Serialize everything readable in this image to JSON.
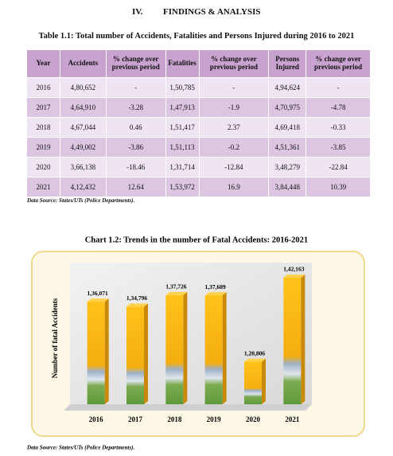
{
  "header": {
    "section_number": "IV.",
    "section_title": "FINDINGS & ANALYSIS"
  },
  "table": {
    "title": "Table 1.1:  Total number of Accidents, Fatalities and Persons Injured during 2016 to 2021",
    "columns": [
      "Year",
      "Accidents",
      "% change over previous period",
      "Fatalities",
      "% change over previous period",
      "Persons Injured",
      "% change over previous period"
    ],
    "rows": [
      [
        "2016",
        "4,80,652",
        "-",
        "1,50,785",
        "-",
        "4,94,624",
        "-"
      ],
      [
        "2017",
        "4,64,910",
        "-3.28",
        "1,47,913",
        "-1.9",
        "4,70,975",
        "-4.78"
      ],
      [
        "2018",
        "4,67,044",
        "0.46",
        "1,51,417",
        "2.37",
        "4,69,418",
        "-0.33"
      ],
      [
        "2019",
        "4,49,002",
        "-3.86",
        "1,51,113",
        "-0.2",
        "4,51,361",
        "-3.85"
      ],
      [
        "2020",
        "3,66,138",
        "-18.46",
        "1,31,714",
        "-12.84",
        "3,48,279",
        "-22.84"
      ],
      [
        "2021",
        "4,12,432",
        "12.64",
        "1,53,972",
        "16.9",
        "3,84,448",
        "10.39"
      ]
    ],
    "source": "Data Source: States/UTs (Police Departments)."
  },
  "chart_data": {
    "type": "bar",
    "title": "Chart 1.2:  Trends in the number of Fatal Accidents: 2016-2021",
    "y_label": "Number of fatal Accidents",
    "categories": [
      "2016",
      "2017",
      "2018",
      "2019",
      "2020",
      "2021"
    ],
    "values": [
      136071,
      134796,
      137726,
      137689,
      120806,
      142163
    ],
    "value_labels": [
      "1,36,071",
      "1,34,796",
      "1,37,726",
      "1,37,689",
      "1,20,806",
      "1,42,163"
    ],
    "ylim": [
      110000,
      146000
    ],
    "color": "#f5ae10",
    "source": "Data Source: States/UTs (Police Departments)."
  }
}
